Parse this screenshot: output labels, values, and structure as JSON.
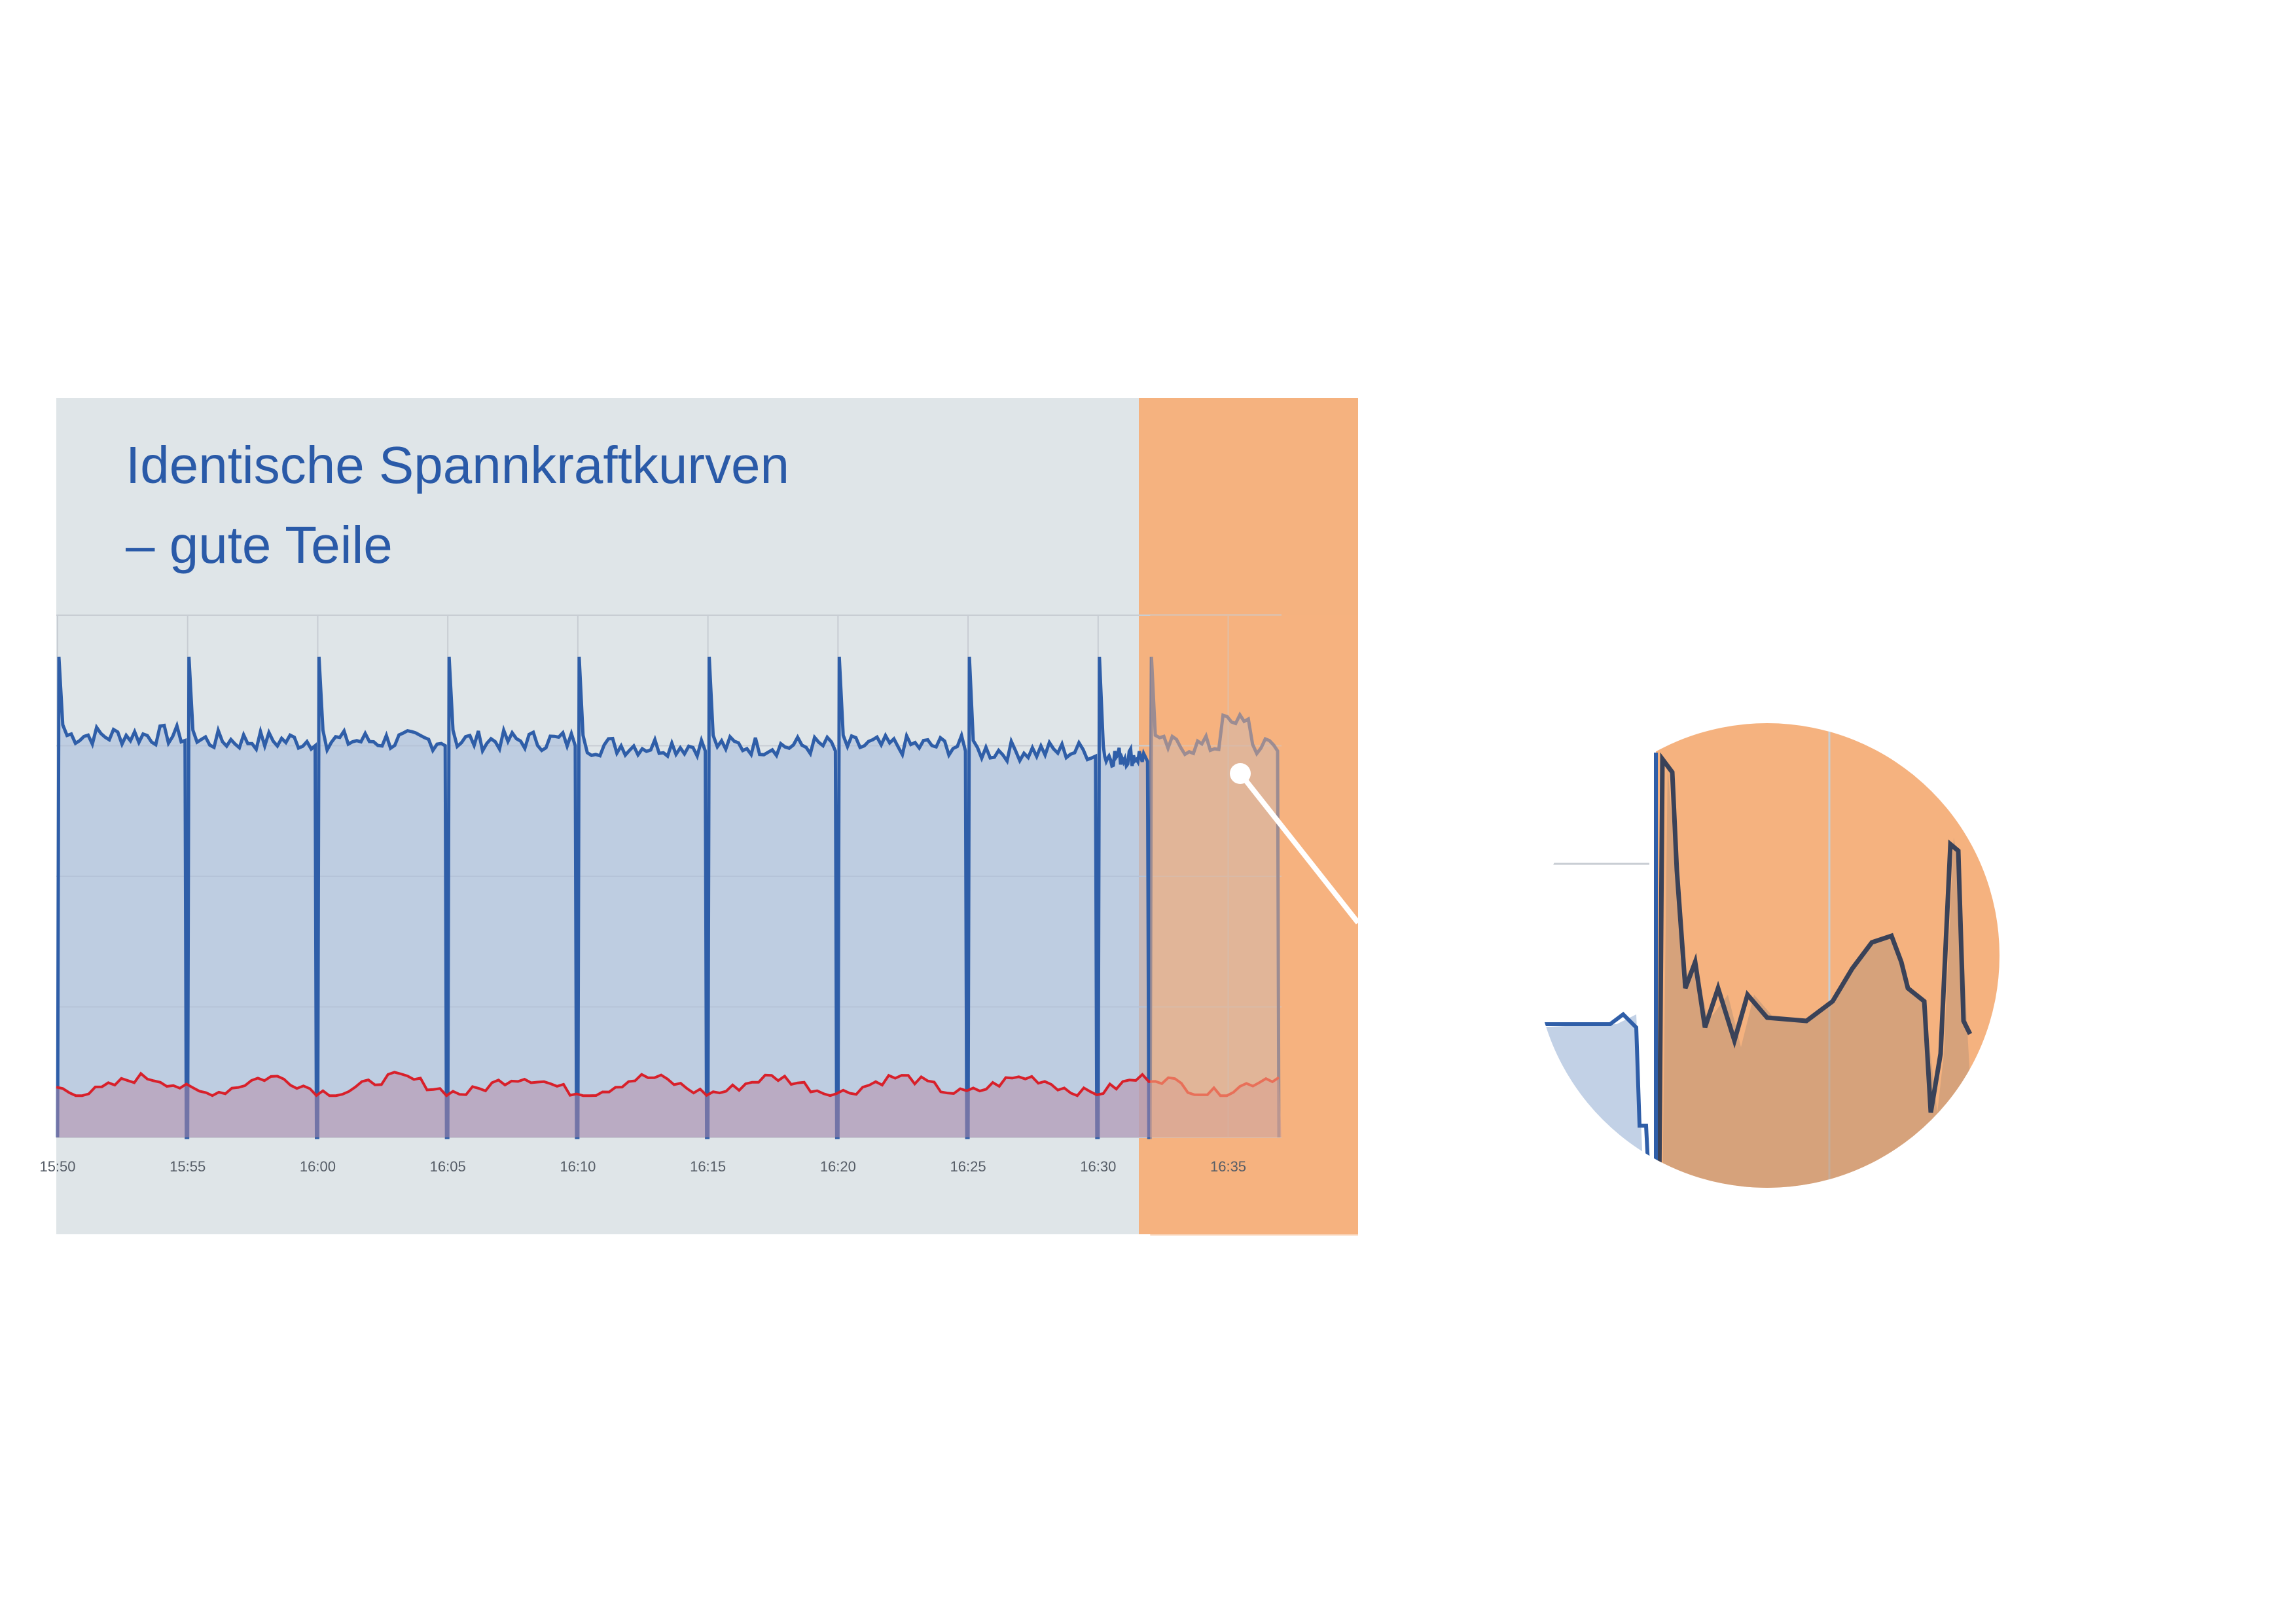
{
  "title": {
    "line1": "Identische Spannkraftkurven",
    "line2": "– gute Teile"
  },
  "colors": {
    "panel_bg": "#dfe5e8",
    "highlight": "#f5b27f",
    "blue_line": "#2f5ea8",
    "blue_fill": "#a8bddc",
    "red_line": "#d8202a",
    "red_fill": "#b68aa6",
    "dark_line": "#3a4258",
    "grid": "#c8cdd3",
    "pointer": "#ffffff"
  },
  "chart_data": {
    "type": "area",
    "title": "Identische Spannkraftkurven – gute Teile",
    "xlabel": "",
    "ylabel": "",
    "x_ticks": [
      "15:50",
      "15:55",
      "16:00",
      "16:05",
      "16:10",
      "16:15",
      "16:20",
      "16:25",
      "16:30",
      "16:35"
    ],
    "x_range": [
      "15:50",
      "16:37"
    ],
    "y_range": [
      0,
      100
    ],
    "grid": true,
    "legend": "none",
    "highlight_region": {
      "from": "16:32",
      "to": "16:37",
      "color": "#f5b27f"
    },
    "series": [
      {
        "color": "#2f5ea8",
        "cycle_starts": [
          "15:50",
          "15:55",
          "16:00",
          "16:05",
          "16:10",
          "16:15",
          "16:20",
          "16:25",
          "16:30",
          "16:32",
          "16:37"
        ],
        "peak_value": 92,
        "plateau_values": [
          77,
          76,
          76,
          76,
          75,
          75,
          75,
          74,
          73,
          75
        ],
        "drop_value": 0
      },
      {
        "color": "#d8202a",
        "values_range": [
          8,
          14
        ],
        "mean_value": 10
      }
    ],
    "magnifier": {
      "focus_time": "16:35",
      "description_values": {
        "peak": 92,
        "plateau": 76
      }
    }
  }
}
